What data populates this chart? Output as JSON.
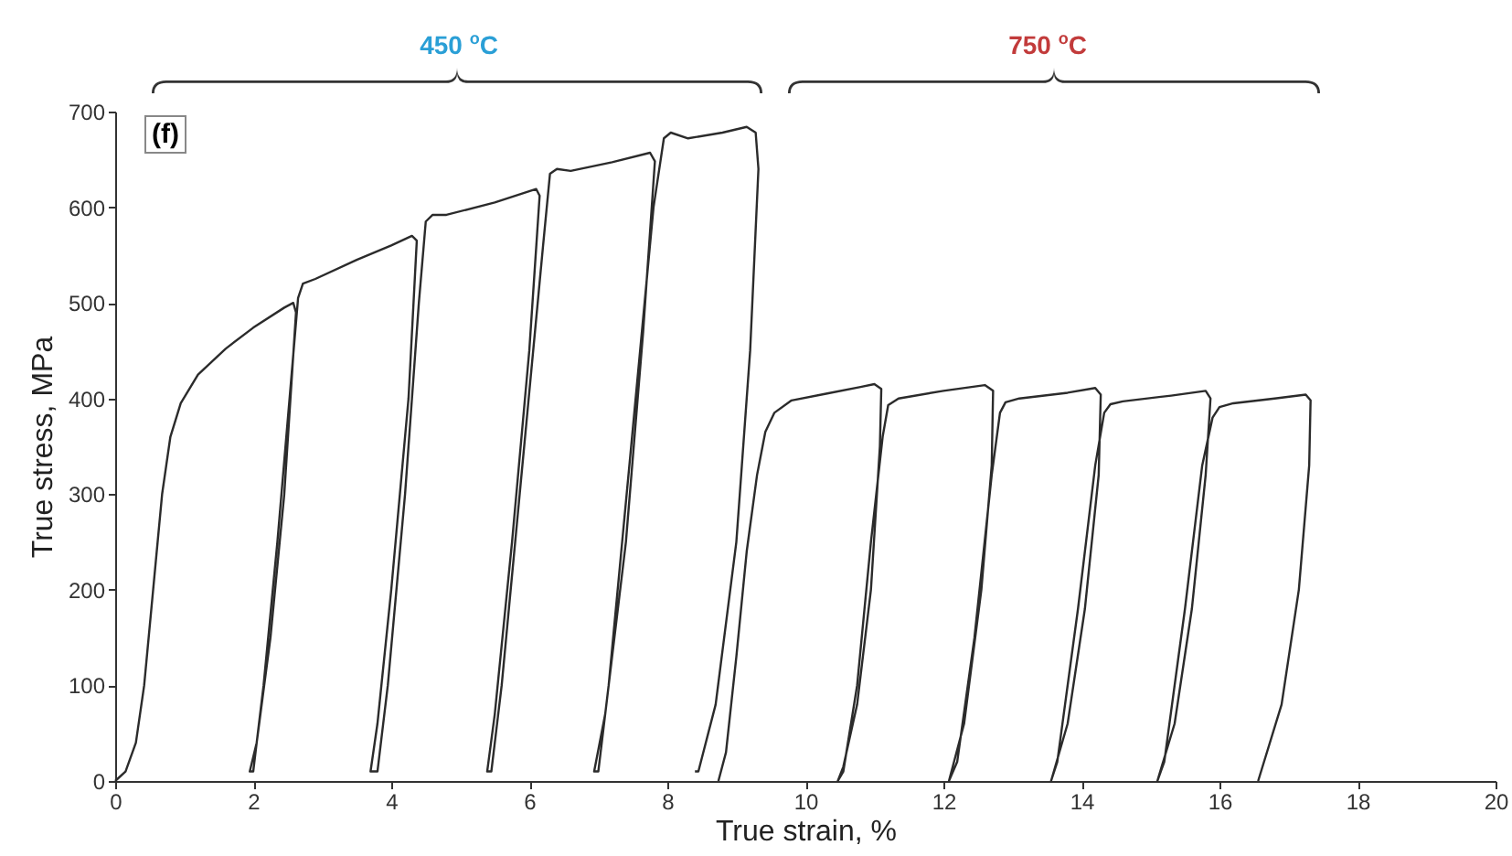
{
  "chart_data": {
    "type": "line",
    "xlabel": "True strain, %",
    "ylabel": "True stress, MPa",
    "xlim": [
      0,
      20
    ],
    "ylim": [
      0,
      700
    ],
    "xticks": [
      0,
      2,
      4,
      6,
      8,
      10,
      12,
      14,
      16,
      18,
      20
    ],
    "yticks": [
      0,
      100,
      200,
      300,
      400,
      500,
      600,
      700
    ],
    "annotations": [
      "(f)",
      "450 $^{o}$C",
      "750 $^{o}$C"
    ],
    "series": [
      {
        "color": "#2b2b2b",
        "x": [
          0,
          0.15,
          0.3,
          0.42,
          0.55,
          0.68,
          0.8,
          0.95,
          1.2,
          1.6,
          2.0,
          2.45,
          2.58,
          2.62,
          2.45,
          2.25,
          2.05,
          1.95,
          2.0,
          2.15,
          2.35,
          2.55,
          2.65,
          2.72,
          2.9,
          3.5,
          4.0,
          4.3,
          4.37,
          4.25,
          4.0,
          3.8,
          3.7,
          3.8,
          3.95,
          4.2,
          4.4,
          4.5,
          4.6,
          4.8,
          5.5,
          6.1,
          6.15,
          6.0,
          5.75,
          5.5,
          5.39,
          5.45,
          5.6,
          5.9,
          6.2,
          6.3,
          6.4,
          6.6,
          7.2,
          7.75,
          7.82,
          7.65,
          7.4,
          7.1,
          6.94,
          7.0,
          7.15,
          7.45,
          7.8,
          7.95,
          8.05,
          8.3,
          8.8,
          9.15,
          9.28,
          9.32,
          9.2,
          9.0,
          8.7,
          8.45,
          8.4
        ],
        "values": [
          0,
          10,
          40,
          100,
          200,
          300,
          360,
          395,
          425,
          452,
          474,
          495,
          500,
          490,
          300,
          150,
          40,
          10,
          10,
          100,
          250,
          420,
          505,
          520,
          525,
          545,
          560,
          570,
          565,
          400,
          200,
          60,
          10,
          10,
          100,
          300,
          500,
          585,
          592,
          592,
          605,
          619,
          612,
          450,
          250,
          70,
          10,
          10,
          100,
          330,
          560,
          635,
          640,
          638,
          647,
          657,
          648,
          470,
          250,
          70,
          10,
          10,
          100,
          330,
          600,
          672,
          678,
          672,
          678,
          684,
          678,
          640,
          450,
          250,
          80,
          10,
          10
        ]
      },
      {
        "color": "#2b2b2b",
        "x": [
          8.74,
          8.85,
          9.0,
          9.15,
          9.3,
          9.42,
          9.55,
          9.8,
          10.3,
          10.8,
          11.0,
          11.1,
          11.08,
          10.95,
          10.75,
          10.55,
          10.47,
          10.55,
          10.75,
          10.95,
          11.12,
          11.2,
          11.35,
          12.0,
          12.6,
          12.72,
          12.7,
          12.55,
          12.3,
          12.08,
          12.2,
          12.45,
          12.7,
          12.82,
          12.9,
          13.1,
          13.8,
          14.2,
          14.28,
          14.25,
          14.05,
          13.8,
          13.56,
          13.65,
          13.95,
          14.2,
          14.33,
          14.42,
          14.6,
          15.3,
          15.8,
          15.87,
          15.8,
          15.6,
          15.35,
          15.1,
          15.2,
          15.5,
          15.75,
          15.9,
          16.0,
          16.2,
          16.8,
          17.25,
          17.32,
          17.3,
          17.15,
          16.9,
          16.56
        ],
        "values": [
          0,
          30,
          130,
          240,
          320,
          365,
          385,
          398,
          405,
          412,
          415,
          410,
          350,
          200,
          80,
          15,
          0,
          10,
          100,
          250,
          360,
          393,
          400,
          408,
          414,
          408,
          330,
          200,
          60,
          0,
          20,
          150,
          320,
          385,
          396,
          400,
          406,
          411,
          404,
          320,
          180,
          60,
          0,
          20,
          180,
          330,
          385,
          394,
          397,
          403,
          408,
          400,
          320,
          180,
          60,
          0,
          20,
          180,
          330,
          380,
          391,
          395,
          400,
          404,
          398,
          330,
          200,
          80,
          0
        ]
      }
    ]
  }
}
